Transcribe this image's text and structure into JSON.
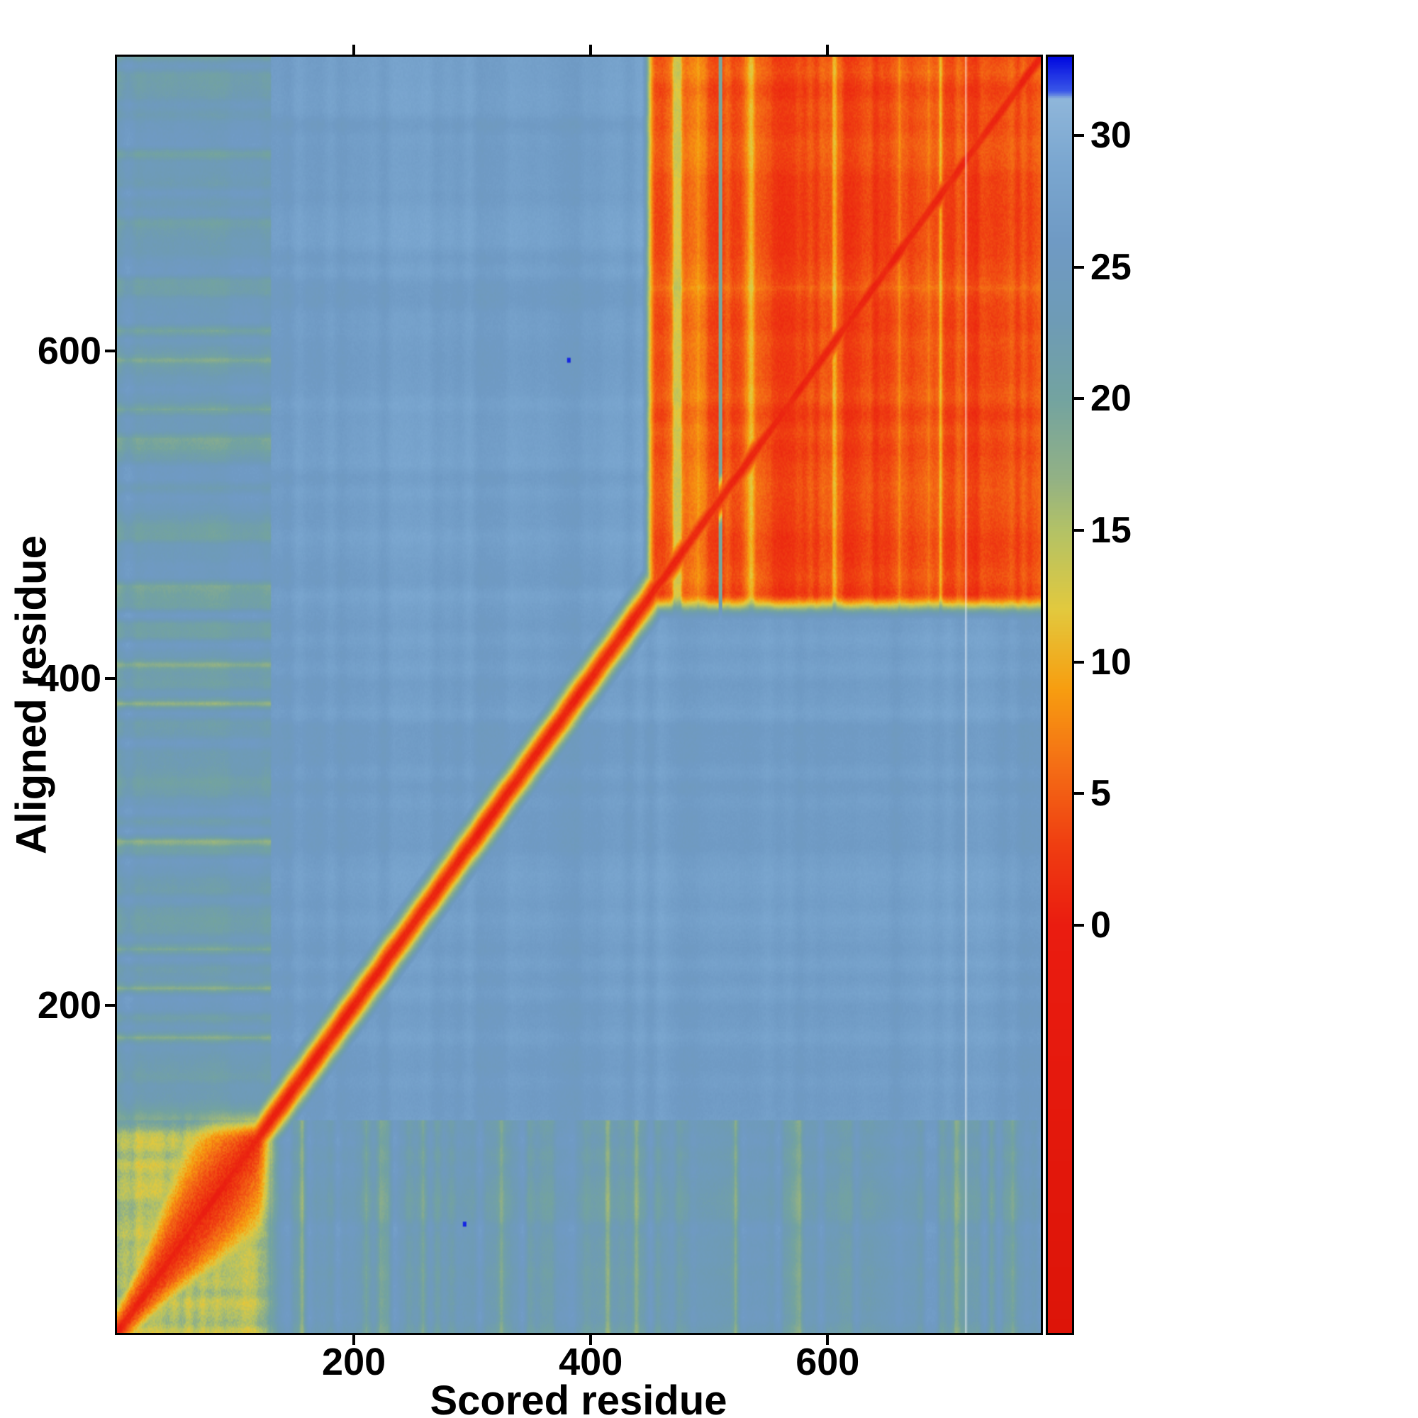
{
  "figure": {
    "title": "",
    "background_color": "#ffffff"
  },
  "chart_data": {
    "type": "heatmap",
    "description": "Predicted-aligned-error style residue-vs-residue heatmap: low error (red) along the diagonal, a compact low-error domain for residues ~1-130, a thin low-error diagonal linker from ~130-450, a large low-error block for residues ~450-780, and high error (blue) between domains.",
    "xlabel": "Scored residue",
    "ylabel": "Aligned residue",
    "x_range": [
      0,
      780
    ],
    "y_range": [
      0,
      780
    ],
    "x_ticks": [
      200,
      400,
      600
    ],
    "y_ticks": [
      200,
      400,
      600
    ],
    "colorbar": {
      "ticks": [
        0,
        5,
        10,
        15,
        20,
        25,
        30
      ],
      "axis_min": -15.5,
      "axis_max": 33,
      "colormap_stops": [
        {
          "v": -16,
          "color": "#dc1408"
        },
        {
          "v": 0,
          "color": "#ea1c10"
        },
        {
          "v": 3,
          "color": "#ef3d11"
        },
        {
          "v": 6,
          "color": "#f46d15"
        },
        {
          "v": 9,
          "color": "#f79e10"
        },
        {
          "v": 12,
          "color": "#e2c93e"
        },
        {
          "v": 15,
          "color": "#b3c266"
        },
        {
          "v": 17,
          "color": "#92b185"
        },
        {
          "v": 20,
          "color": "#73a3a0"
        },
        {
          "v": 23,
          "color": "#6e9bb6"
        },
        {
          "v": 26,
          "color": "#6f9ac4"
        },
        {
          "v": 29,
          "color": "#7ba7d0"
        },
        {
          "v": 31.4,
          "color": "#8fb6da"
        },
        {
          "v": 31.7,
          "color": "#3a57e8"
        },
        {
          "v": 33,
          "color": "#0008e0"
        }
      ]
    },
    "structure": {
      "background_pae": 27,
      "band_pae": 23,
      "domain1": {
        "start": 0,
        "end": 130,
        "core_pae": 1.2,
        "square_pae": 14.8
      },
      "linker_diagonal": {
        "start": 130,
        "end": 450,
        "pae": 0.8
      },
      "domain2": {
        "start": 450,
        "end": 780,
        "pae": 4.2
      },
      "artifact_lines": [
        {
          "x": 509,
          "pae": 19.5
        },
        {
          "x": 716,
          "type": "light"
        }
      ],
      "speckles": [
        {
          "x": 381,
          "y": 594,
          "pae": 32.5
        },
        {
          "x": 293,
          "y": 66,
          "pae": 32.5
        }
      ]
    },
    "coarse_grid": {
      "bin_size": 60,
      "bin_centers": [
        30,
        90,
        150,
        210,
        270,
        330,
        390,
        450,
        510,
        570,
        630,
        690,
        750
      ],
      "orientation": "rows are aligned-residue bins from bottom (low) to top (high); columns are scored-residue bins left to right; values are representative PAE",
      "values": [
        [
          3,
          6,
          13,
          24,
          24,
          25,
          24,
          25,
          25,
          24,
          25,
          24,
          25
        ],
        [
          6,
          4,
          9,
          23,
          24,
          25,
          25,
          25,
          26,
          25,
          25,
          25,
          25
        ],
        [
          13,
          9,
          5,
          20,
          25,
          26,
          26,
          26,
          26,
          26,
          26,
          26,
          26
        ],
        [
          23,
          24,
          20,
          5,
          20,
          26,
          26,
          27,
          27,
          27,
          27,
          27,
          27
        ],
        [
          23,
          24,
          25,
          20,
          5,
          20,
          26,
          27,
          27,
          27,
          27,
          27,
          27
        ],
        [
          22,
          24,
          26,
          26,
          20,
          5,
          20,
          27,
          27,
          27,
          27,
          27,
          27
        ],
        [
          23,
          24,
          26,
          26,
          26,
          20,
          5,
          20,
          27,
          27,
          27,
          27,
          27
        ],
        [
          23,
          24,
          27,
          27,
          27,
          27,
          20,
          4,
          6,
          6,
          6,
          6,
          6
        ],
        [
          22,
          24,
          27,
          27,
          27,
          27,
          27,
          6,
          4,
          5,
          5,
          5,
          5
        ],
        [
          23,
          24,
          27,
          27,
          27,
          27,
          27,
          6,
          5,
          4,
          5,
          5,
          5
        ],
        [
          23,
          24,
          27,
          27,
          27,
          27,
          27,
          6,
          5,
          5,
          4,
          5,
          5
        ],
        [
          22,
          24,
          27,
          27,
          27,
          27,
          27,
          6,
          5,
          5,
          5,
          4,
          5
        ],
        [
          23,
          24,
          27,
          27,
          27,
          27,
          27,
          6,
          5,
          5,
          5,
          5,
          4
        ]
      ]
    }
  }
}
